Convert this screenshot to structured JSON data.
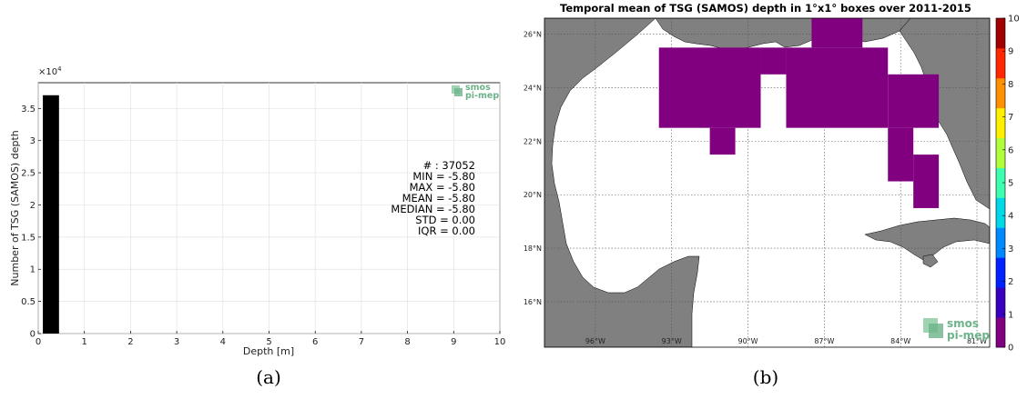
{
  "chart_data": [
    {
      "type": "bar",
      "panel_label": "(a)",
      "xlabel": "Depth [m]",
      "ylabel": "Number of TSG (SAMOS) depth",
      "y_multiplier_label": "×10",
      "y_multiplier_exp": "4",
      "xlim": [
        0,
        10
      ],
      "ylim": [
        0,
        39000
      ],
      "x_ticks": [
        "0",
        "1",
        "2",
        "3",
        "4",
        "5",
        "6",
        "7",
        "8",
        "9",
        "10"
      ],
      "y_ticks": [
        {
          "value": 0,
          "label": "0"
        },
        {
          "value": 5000,
          "label": "0.5"
        },
        {
          "value": 10000,
          "label": "1"
        },
        {
          "value": 15000,
          "label": "1.5"
        },
        {
          "value": 20000,
          "label": "2"
        },
        {
          "value": 25000,
          "label": "2.5"
        },
        {
          "value": 30000,
          "label": "3"
        },
        {
          "value": 35000,
          "label": "3.5"
        }
      ],
      "grid": true,
      "bins": [
        {
          "x0": 0.1,
          "x1": 0.45,
          "count": 37052
        }
      ],
      "bar_color": "#000000",
      "stats": [
        "# : 37052",
        "MIN = -5.80",
        "MAX =  -5.80",
        "MEAN = -5.80",
        "MEDIAN = -5.80",
        "STD = 0.00",
        "IQR = 0.00"
      ],
      "logo": {
        "line1": "smos",
        "line2": "pi-mep"
      }
    },
    {
      "type": "heatmap",
      "panel_label": "(b)",
      "title": "Temporal mean of TSG (SAMOS) depth in 1°x1° boxes over 2011-2015",
      "lon_range": [
        -98,
        -80.5
      ],
      "lat_range": [
        14.3,
        26.6
      ],
      "x_ticks": [
        {
          "value": -96,
          "label": "96°W"
        },
        {
          "value": -93,
          "label": "93°W"
        },
        {
          "value": -90,
          "label": "90°W"
        },
        {
          "value": -87,
          "label": "87°W"
        },
        {
          "value": -84,
          "label": "84°W"
        },
        {
          "value": -81,
          "label": "81°W"
        }
      ],
      "y_ticks": [
        {
          "value": 16,
          "label": "16°N"
        },
        {
          "value": 18,
          "label": "18°N"
        },
        {
          "value": 20,
          "label": "20°N"
        },
        {
          "value": 22,
          "label": "22°N"
        },
        {
          "value": 24,
          "label": "24°N"
        },
        {
          "value": 26,
          "label": "26°N"
        }
      ],
      "grid": true,
      "cell_value_color": "#800080",
      "cells": [
        {
          "lon0": -93.5,
          "lat0": 22.5,
          "lon1": -89.5,
          "lat1": 25.5
        },
        {
          "lon0": -91.5,
          "lat0": 21.5,
          "lon1": -90.5,
          "lat1": 22.5
        },
        {
          "lon0": -89.5,
          "lat0": 24.5,
          "lon1": -88.5,
          "lat1": 25.5
        },
        {
          "lon0": -88.5,
          "lat0": 22.5,
          "lon1": -84.5,
          "lat1": 25.5
        },
        {
          "lon0": -87.5,
          "lat0": 25.5,
          "lon1": -85.5,
          "lat1": 26.6
        },
        {
          "lon0": -84.5,
          "lat0": 22.5,
          "lon1": -82.5,
          "lat1": 24.5
        },
        {
          "lon0": -84.5,
          "lat0": 20.5,
          "lon1": -83.5,
          "lat1": 22.5
        },
        {
          "lon0": -83.5,
          "lat0": 19.5,
          "lon1": -82.5,
          "lat1": 21.5
        }
      ],
      "colorbar": {
        "min": 0,
        "max": 10,
        "ticks": [
          "0",
          "1",
          "2",
          "3",
          "4",
          "5",
          "6",
          "7",
          "8",
          "9",
          "10"
        ],
        "colors": [
          "#800080",
          "#3a00c0",
          "#0022ff",
          "#0088ff",
          "#00d8e8",
          "#3cffb0",
          "#b0ff3c",
          "#fff000",
          "#ff9000",
          "#ff2800",
          "#a00000"
        ]
      },
      "land_color": "#808080",
      "logo": {
        "line1": "smos",
        "line2": "pi-mep"
      }
    }
  ]
}
